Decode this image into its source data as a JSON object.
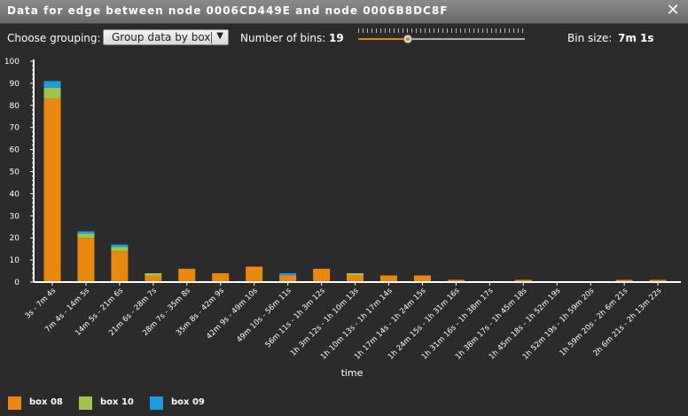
{
  "window": {
    "title": "Data for edge between node 0006CD449E and node 0006B8DC8F",
    "close_icon": "close-x-icon"
  },
  "controls": {
    "grouping_label": "Choose grouping:",
    "grouping_value": "Group data by box",
    "bins_label": "Number of bins:",
    "bins_value": "19",
    "slider_level": 0.3,
    "bin_size_label": "Bin size:",
    "bin_size_value": "7m 1s"
  },
  "colors": {
    "box08": "#e8880e",
    "box10": "#9fc34d",
    "box09": "#1e9bdc",
    "axis": "#ffffff"
  },
  "chart_data": {
    "type": "bar",
    "stacked": true,
    "xlabel": "time",
    "ylabel": "",
    "ylim": [
      0,
      100
    ],
    "yticks": [
      0,
      10,
      20,
      30,
      40,
      50,
      60,
      70,
      80,
      90,
      100
    ],
    "categories": [
      "3s - 7m 4s",
      "7m 4s - 14m 5s",
      "14m 5s - 21m 6s",
      "21m 6s - 28m 7s",
      "28m 7s - 35m 8s",
      "35m 8s - 42m 9s",
      "42m 9s - 49m 10s",
      "49m 10s - 56m 11s",
      "56m 11s - 1h 3m 12s",
      "1h 3m 12s - 1h 10m 13s",
      "1h 10m 13s - 1h 17m 14s",
      "1h 17m 14s - 1h 24m 15s",
      "1h 24m 15s - 1h 31m 16s",
      "1h 31m 16s - 1h 38m 17s",
      "1h 38m 17s - 1h 45m 18s",
      "1h 45m 18s - 1h 52m 19s",
      "1h 52m 19s - 1h 59m 20s",
      "1h 59m 20s - 2h 6m 21s",
      "2h 6m 21s - 2h 13m 22s"
    ],
    "series": [
      {
        "name": "box 08",
        "values": [
          83,
          20,
          14,
          3,
          6,
          4,
          7,
          3,
          6,
          3,
          3,
          3,
          1,
          0,
          1,
          0,
          0,
          1,
          1
        ]
      },
      {
        "name": "box 10",
        "values": [
          5,
          2,
          2,
          1,
          0,
          0,
          0,
          0,
          0,
          1,
          0,
          0,
          0,
          0,
          0,
          0,
          0,
          0,
          0
        ]
      },
      {
        "name": "box 09",
        "values": [
          3,
          1,
          1,
          0,
          0,
          0,
          0,
          1,
          0,
          0,
          0,
          0,
          0,
          0,
          0,
          0,
          0,
          0,
          0
        ]
      }
    ],
    "legend_position": "bottom-left"
  }
}
